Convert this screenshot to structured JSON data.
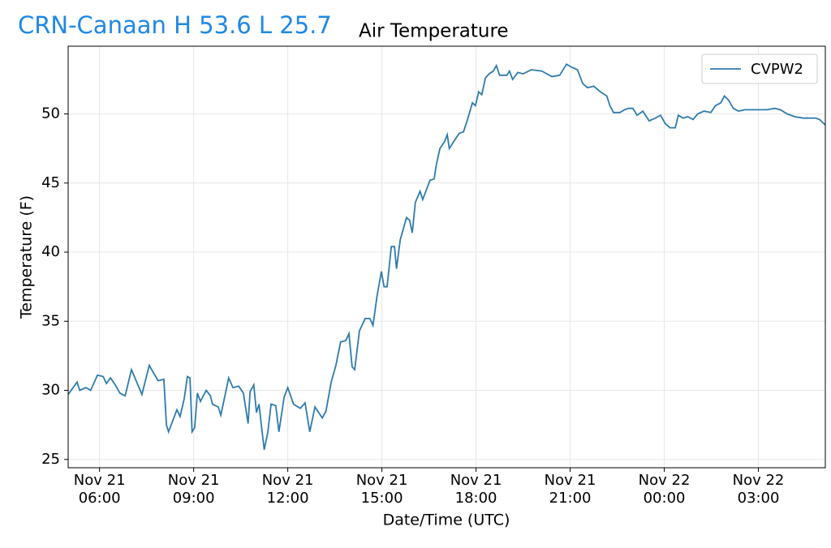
{
  "header": "CRN-Canaan H 53.6 L 25.7",
  "chart_data": {
    "type": "line",
    "title": "Air Temperature",
    "xlabel": "Date/Time (UTC)",
    "ylabel": "Temperature (F)",
    "x": [
      "Nov 21 05:00",
      "Nov 21 05:17",
      "Nov 21 05:22",
      "Nov 21 05:34",
      "Nov 21 05:43",
      "Nov 21 05:56",
      "Nov 21 06:07",
      "Nov 21 06:13",
      "Nov 21 06:21",
      "Nov 21 06:30",
      "Nov 21 06:39",
      "Nov 21 06:49",
      "Nov 21 07:01",
      "Nov 21 07:21",
      "Nov 21 07:35",
      "Nov 21 07:52",
      "Nov 21 08:03",
      "Nov 21 08:08",
      "Nov 21 08:12",
      "Nov 21 08:28",
      "Nov 21 08:34",
      "Nov 21 08:42",
      "Nov 21 08:48",
      "Nov 21 08:53",
      "Nov 21 08:57",
      "Nov 21 09:02",
      "Nov 21 09:07",
      "Nov 21 09:13",
      "Nov 21 09:24",
      "Nov 21 09:32",
      "Nov 21 09:36",
      "Nov 21 09:47",
      "Nov 21 09:52",
      "Nov 21 10:07",
      "Nov 21 10:15",
      "Nov 21 10:26",
      "Nov 21 10:35",
      "Nov 21 10:44",
      "Nov 21 10:48",
      "Nov 21 10:55",
      "Nov 21 11:00",
      "Nov 21 11:05",
      "Nov 21 11:09",
      "Nov 21 11:15",
      "Nov 21 11:22",
      "Nov 21 11:28",
      "Nov 21 11:37",
      "Nov 21 11:43",
      "Nov 21 11:53",
      "Nov 21 12:00",
      "Nov 21 12:11",
      "Nov 21 12:24",
      "Nov 21 12:33",
      "Nov 21 12:42",
      "Nov 21 12:52",
      "Nov 21 12:59",
      "Nov 21 13:06",
      "Nov 21 13:13",
      "Nov 21 13:23",
      "Nov 21 13:32",
      "Nov 21 13:41",
      "Nov 21 13:51",
      "Nov 21 13:57",
      "Nov 21 14:03",
      "Nov 21 14:08",
      "Nov 21 14:17",
      "Nov 21 14:28",
      "Nov 21 14:37",
      "Nov 21 14:43",
      "Nov 21 14:51",
      "Nov 21 14:59",
      "Nov 21 15:04",
      "Nov 21 15:10",
      "Nov 21 15:18",
      "Nov 21 15:24",
      "Nov 21 15:28",
      "Nov 21 15:35",
      "Nov 21 15:47",
      "Nov 21 15:53",
      "Nov 21 15:58",
      "Nov 21 16:04",
      "Nov 21 16:13",
      "Nov 21 16:18",
      "Nov 21 16:26",
      "Nov 21 16:32",
      "Nov 21 16:40",
      "Nov 21 16:44",
      "Nov 21 16:51",
      "Nov 21 17:00",
      "Nov 21 17:05",
      "Nov 21 17:09",
      "Nov 21 17:19",
      "Nov 21 17:28",
      "Nov 21 17:36",
      "Nov 21 17:43",
      "Nov 21 17:53",
      "Nov 21 17:59",
      "Nov 21 18:05",
      "Nov 21 18:11",
      "Nov 21 18:18",
      "Nov 21 18:25",
      "Nov 21 18:33",
      "Nov 21 18:39",
      "Nov 21 18:45",
      "Nov 21 18:59",
      "Nov 21 19:04",
      "Nov 21 19:10",
      "Nov 21 19:20",
      "Nov 21 19:30",
      "Nov 21 19:46",
      "Nov 21 20:06",
      "Nov 21 20:25",
      "Nov 21 20:40",
      "Nov 21 20:53",
      "Nov 21 21:02",
      "Nov 21 21:14",
      "Nov 21 21:24",
      "Nov 21 21:33",
      "Nov 21 21:45",
      "Nov 21 21:58",
      "Nov 21 22:10",
      "Nov 21 22:16",
      "Nov 21 22:23",
      "Nov 21 22:35",
      "Nov 21 22:44",
      "Nov 21 22:51",
      "Nov 21 23:00",
      "Nov 21 23:08",
      "Nov 21 23:19",
      "Nov 21 23:31",
      "Nov 21 23:43",
      "Nov 21 23:53",
      "Nov 22 00:02",
      "Nov 22 00:11",
      "Nov 22 00:21",
      "Nov 22 00:27",
      "Nov 22 00:36",
      "Nov 22 00:45",
      "Nov 22 00:55",
      "Nov 22 01:04",
      "Nov 22 01:16",
      "Nov 22 01:29",
      "Nov 22 01:38",
      "Nov 22 01:48",
      "Nov 22 01:55",
      "Nov 22 02:03",
      "Nov 22 02:12",
      "Nov 22 02:22",
      "Nov 22 02:34",
      "Nov 22 02:53",
      "Nov 22 03:16",
      "Nov 22 03:31",
      "Nov 22 03:42",
      "Nov 22 03:55",
      "Nov 22 04:10",
      "Nov 22 04:26",
      "Nov 22 04:49",
      "Nov 22 04:57",
      "Nov 22 05:08"
    ],
    "series": [
      {
        "name": "CVPW2",
        "color": "#2e7bac",
        "values": [
          29.7,
          30.6,
          30.0,
          30.2,
          30.0,
          31.1,
          31.0,
          30.5,
          30.9,
          30.4,
          29.8,
          29.6,
          31.5,
          29.7,
          31.8,
          30.7,
          30.8,
          27.5,
          27.0,
          28.6,
          28.1,
          29.4,
          31.0,
          30.9,
          27.0,
          27.3,
          29.8,
          29.2,
          30.0,
          29.6,
          29.0,
          28.8,
          28.2,
          30.9,
          30.2,
          30.3,
          29.8,
          27.6,
          29.9,
          30.4,
          28.4,
          29.0,
          27.6,
          25.7,
          27.0,
          29.0,
          28.9,
          27.0,
          29.5,
          30.2,
          29.0,
          28.7,
          29.1,
          27.0,
          28.8,
          28.4,
          28.0,
          28.5,
          30.6,
          31.8,
          33.5,
          33.6,
          34.1,
          31.7,
          31.5,
          34.3,
          35.2,
          35.2,
          34.7,
          36.9,
          38.6,
          37.5,
          37.5,
          40.4,
          40.4,
          38.8,
          40.9,
          42.5,
          42.3,
          41.4,
          43.6,
          44.4,
          43.8,
          44.6,
          45.2,
          45.3,
          46.3,
          47.5,
          48.0,
          48.5,
          47.5,
          48.1,
          48.6,
          48.7,
          49.5,
          50.8,
          50.6,
          51.6,
          51.4,
          52.6,
          52.9,
          53.1,
          53.5,
          52.8,
          52.8,
          53.1,
          52.5,
          53.0,
          52.9,
          53.2,
          53.1,
          52.7,
          52.8,
          53.6,
          53.4,
          53.2,
          52.2,
          51.9,
          52.0,
          51.6,
          51.3,
          50.6,
          50.1,
          50.1,
          50.3,
          50.4,
          50.4,
          49.9,
          50.2,
          49.5,
          49.7,
          49.9,
          49.3,
          49.0,
          49.0,
          49.9,
          49.7,
          49.8,
          49.6,
          50.0,
          50.2,
          50.1,
          50.6,
          50.8,
          51.3,
          51.0,
          50.4,
          50.2,
          50.3,
          50.3,
          50.3,
          50.4,
          50.3,
          50.0,
          49.8,
          49.7,
          49.7,
          49.6,
          49.2
        ]
      }
    ],
    "xlim": [
      "Nov 21 05:00",
      "Nov 22 05:08"
    ],
    "xticks": [
      {
        "value": "Nov 21 06:00",
        "label": "Nov 21\n06:00"
      },
      {
        "value": "Nov 21 09:00",
        "label": "Nov 21\n09:00"
      },
      {
        "value": "Nov 21 12:00",
        "label": "Nov 21\n12:00"
      },
      {
        "value": "Nov 21 15:00",
        "label": "Nov 21\n15:00"
      },
      {
        "value": "Nov 21 18:00",
        "label": "Nov 21\n18:00"
      },
      {
        "value": "Nov 21 21:00",
        "label": "Nov 21\n21:00"
      },
      {
        "value": "Nov 22 00:00",
        "label": "Nov 22\n00:00"
      },
      {
        "value": "Nov 22 03:00",
        "label": "Nov 22\n03:00"
      }
    ],
    "ylim": [
      24.4,
      54.9
    ],
    "yticks": [
      25,
      30,
      35,
      40,
      45,
      50
    ],
    "grid": true,
    "legend": "upper right"
  }
}
